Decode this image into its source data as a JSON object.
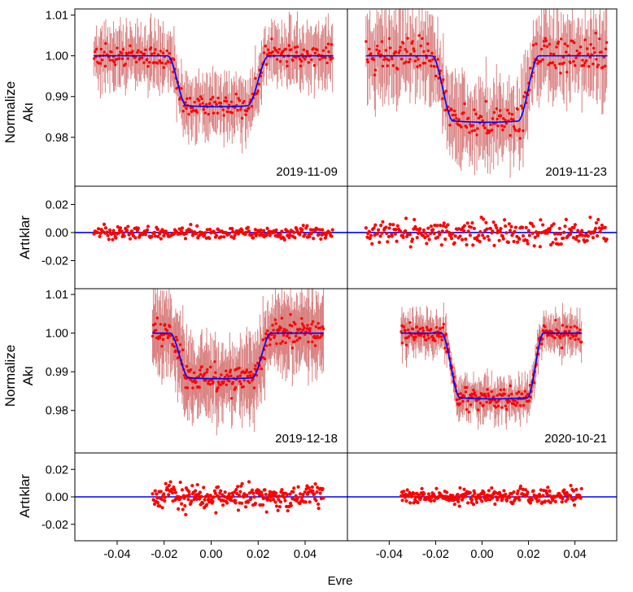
{
  "figure": {
    "xlabel": "Evre",
    "ylabel_flux": [
      "Normalize",
      "Akı"
    ],
    "ylabel_resid": "Artıklar"
  },
  "colors": {
    "data": "#ff0000",
    "errorbar": "#d98080",
    "model": "#0000ff",
    "axis": "#000000"
  },
  "chart_data": [
    {
      "type": "scatter",
      "title": "2019-11-09",
      "xlim": [
        -0.058,
        0.058
      ],
      "xticks": [
        -0.04,
        -0.02,
        0.0,
        0.02,
        0.04
      ],
      "xtick_labels": [
        "-0.04",
        "-0.02",
        "0.00",
        "0.02",
        "0.04"
      ],
      "flux": {
        "ylim": [
          0.968,
          1.0115
        ],
        "yticks": [
          0.98,
          0.99,
          1.0,
          1.01
        ],
        "ytick_labels": [
          "0.98",
          "0.99",
          "1.00",
          "1.01"
        ],
        "data_range": [
          -0.05,
          0.052
        ],
        "model": {
          "depth": 0.0125,
          "t1": -0.0185,
          "t2": -0.0105,
          "t3": 0.0155,
          "t4": 0.0245,
          "center": 0.003,
          "curve": 0.0006
        },
        "scatter": 0.0035,
        "error": 0.006
      },
      "residuals": {
        "ylim": [
          -0.04,
          0.033
        ],
        "yticks": [
          -0.02,
          0.0,
          0.02
        ],
        "ytick_labels": [
          "-0.02",
          "0.00",
          "0.02"
        ],
        "scatter": 0.0055,
        "zero": 0.0
      }
    },
    {
      "type": "scatter",
      "title": "2019-11-23",
      "xlim": [
        -0.058,
        0.058
      ],
      "xticks": [
        -0.04,
        -0.02,
        0.0,
        0.02,
        0.04
      ],
      "xtick_labels": [
        "-0.04",
        "-0.02",
        "0.00",
        "0.02",
        "0.04"
      ],
      "flux": {
        "ylim": [
          0.968,
          1.0115
        ],
        "yticks": [
          0.98,
          0.99,
          1.0,
          1.01
        ],
        "ytick_labels": [
          "0.98",
          "0.99",
          "1.00",
          "1.01"
        ],
        "data_range": [
          -0.05,
          0.054
        ],
        "model": {
          "depth": 0.0163,
          "t1": -0.0215,
          "t2": -0.0125,
          "t3": 0.0155,
          "t4": 0.0245,
          "center": 0.002,
          "curve": 0.0006
        },
        "scatter": 0.0055,
        "error": 0.008
      },
      "residuals": {
        "ylim": [
          -0.04,
          0.033
        ],
        "yticks": [
          -0.02,
          0.0,
          0.02
        ],
        "ytick_labels": [
          "-0.02",
          "0.00",
          "0.02"
        ],
        "scatter": 0.0105,
        "zero": 0.0
      }
    },
    {
      "type": "scatter",
      "title": "2019-12-18",
      "xlim": [
        -0.058,
        0.058
      ],
      "xticks": [
        -0.04,
        -0.02,
        0.0,
        0.02,
        0.04
      ],
      "xtick_labels": [
        "-0.04",
        "-0.02",
        "0.00",
        "0.02",
        "0.04"
      ],
      "flux": {
        "ylim": [
          0.969,
          1.0115
        ],
        "yticks": [
          0.98,
          0.99,
          1.0,
          1.01
        ],
        "ytick_labels": [
          "0.98",
          "0.99",
          "1.00",
          "1.01"
        ],
        "data_range": [
          -0.025,
          0.048
        ],
        "model": {
          "depth": 0.0118,
          "t1": -0.0175,
          "t2": -0.0095,
          "t3": 0.0175,
          "t4": 0.0255,
          "center": 0.004,
          "curve": 0.0005
        },
        "scatter": 0.0045,
        "error": 0.008
      },
      "residuals": {
        "ylim": [
          -0.032,
          0.032
        ],
        "yticks": [
          -0.02,
          0.0,
          0.02
        ],
        "ytick_labels": [
          "-0.02",
          "0.00",
          "0.02"
        ],
        "scatter": 0.011,
        "zero": 0.0
      }
    },
    {
      "type": "scatter",
      "title": "2020-10-21",
      "xlim": [
        -0.058,
        0.058
      ],
      "xticks": [
        -0.04,
        -0.02,
        0.0,
        0.02,
        0.04
      ],
      "xtick_labels": [
        "-0.04",
        "-0.02",
        "0.00",
        "0.02",
        "0.04"
      ],
      "flux": {
        "ylim": [
          0.969,
          1.0115
        ],
        "yticks": [
          0.98,
          0.99,
          1.0,
          1.01
        ],
        "ytick_labels": [
          "0.98",
          "0.99",
          "1.00",
          "1.01"
        ],
        "data_range": [
          -0.035,
          0.043
        ],
        "model": {
          "depth": 0.017,
          "t1": -0.0175,
          "t2": -0.0095,
          "t3": 0.0195,
          "t4": 0.0265,
          "center": 0.005,
          "curve": 0.0005
        },
        "scatter": 0.0035,
        "error": 0.004
      },
      "residuals": {
        "ylim": [
          -0.032,
          0.032
        ],
        "yticks": [
          -0.02,
          0.0,
          0.02
        ],
        "ytick_labels": [
          "-0.02",
          "0.00",
          "0.02"
        ],
        "scatter": 0.0065,
        "zero": 0.0
      }
    }
  ]
}
